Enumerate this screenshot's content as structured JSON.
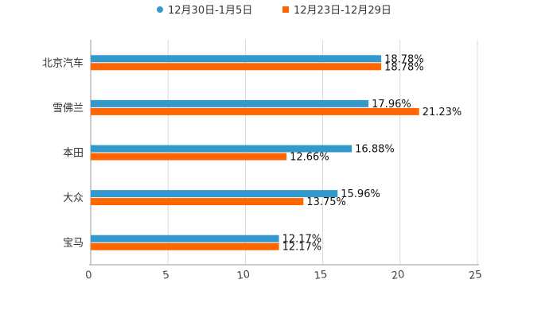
{
  "chart_data": {
    "type": "bar",
    "orientation": "horizontal",
    "categories": [
      "北京汽车",
      "雪佛兰",
      "本田",
      "大众",
      "宝马"
    ],
    "series": [
      {
        "name": "12月30日-1月5日",
        "color": "#3399cc",
        "values": [
          18.78,
          17.96,
          16.88,
          15.96,
          12.17
        ],
        "labels": [
          "18.78%",
          "17.96%",
          "16.88%",
          "15.96%",
          "12.17%"
        ]
      },
      {
        "name": "12月23日-12月29日",
        "color": "#ff6600",
        "values": [
          18.78,
          21.23,
          12.66,
          13.75,
          12.17
        ],
        "labels": [
          "18.78%",
          "21.23%",
          "12.66%",
          "13.75%",
          "12.17%"
        ]
      }
    ],
    "xlim": [
      0,
      25
    ],
    "xticks": [
      0,
      5,
      10,
      15,
      20,
      25
    ],
    "xtick_labels": [
      "0",
      "5",
      "10",
      "15",
      "20",
      "25"
    ],
    "title": "",
    "xlabel": "",
    "ylabel": "",
    "grid": true,
    "legend_position": "top-center"
  }
}
